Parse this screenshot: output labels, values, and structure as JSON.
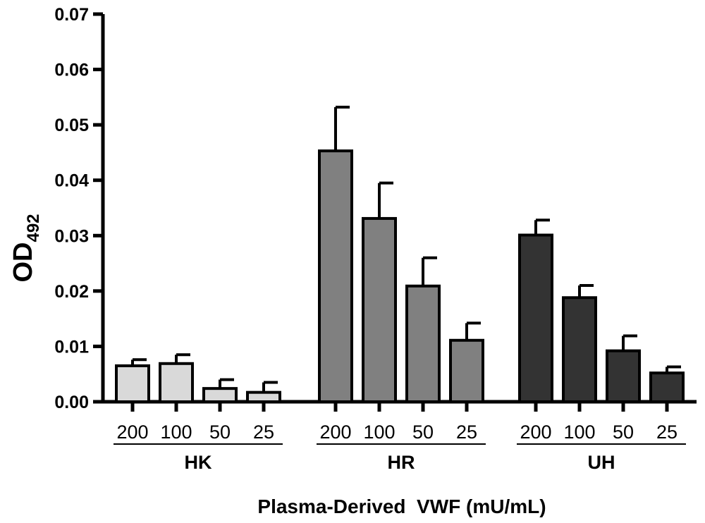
{
  "chart_data": {
    "type": "bar",
    "title": "",
    "ylabel_main": "OD",
    "ylabel_sub": "492",
    "xlabel": "Plasma-Derived  VWF (mU/mL)",
    "ylim": [
      0,
      0.07
    ],
    "yticks": [
      "0.00",
      "0.01",
      "0.02",
      "0.03",
      "0.04",
      "0.05",
      "0.06",
      "0.07"
    ],
    "groups": [
      {
        "name": "HK",
        "color": "#d9d9d9",
        "categories": [
          "200",
          "100",
          "50",
          "25"
        ],
        "values": [
          0.0065,
          0.0069,
          0.0024,
          0.0017
        ],
        "errors": [
          0.0011,
          0.0016,
          0.0016,
          0.0018
        ]
      },
      {
        "name": "HR",
        "color": "#808080",
        "categories": [
          "200",
          "100",
          "50",
          "25"
        ],
        "values": [
          0.0453,
          0.0331,
          0.0209,
          0.0111
        ],
        "errors": [
          0.0079,
          0.0064,
          0.0051,
          0.0031
        ]
      },
      {
        "name": "UH",
        "color": "#333333",
        "categories": [
          "200",
          "100",
          "50",
          "25"
        ],
        "values": [
          0.0301,
          0.0188,
          0.0092,
          0.0052
        ],
        "errors": [
          0.0027,
          0.0022,
          0.0027,
          0.0011
        ]
      }
    ]
  }
}
